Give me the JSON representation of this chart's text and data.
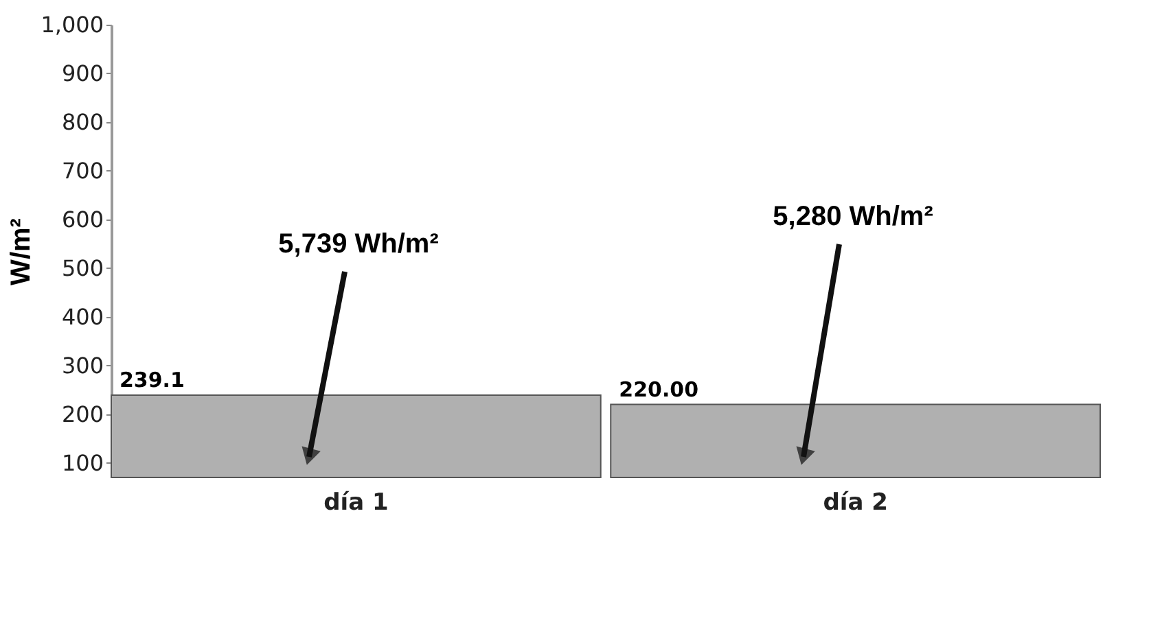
{
  "chart_data": {
    "type": "bar",
    "ylabel": "W/m²",
    "categories": [
      "día 1",
      "día 2"
    ],
    "values": [
      239.1,
      220.0
    ],
    "value_labels": [
      "239.1",
      "220.00"
    ],
    "color": "#b0b0b0",
    "ylim": [
      70,
      1000
    ],
    "yticks": [
      100,
      200,
      300,
      400,
      500,
      600,
      700,
      800,
      900,
      {
        "value": 1000,
        "label": "1,000"
      }
    ],
    "annotations": [
      "5,739 Wh/m²",
      "5,280 Wh/m²"
    ]
  }
}
